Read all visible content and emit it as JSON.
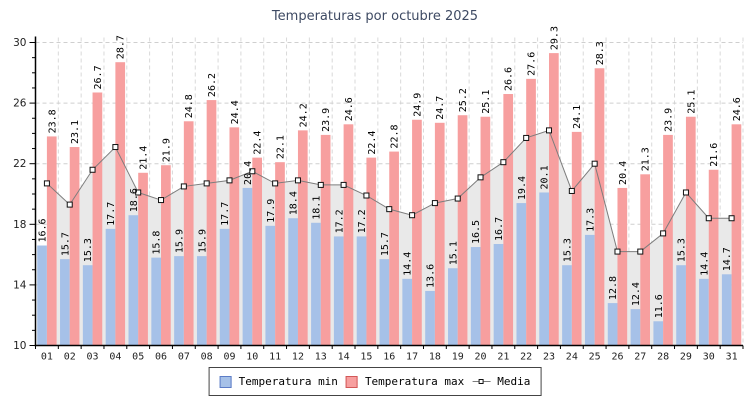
{
  "title": "Temperaturas por octubre 2025",
  "legend": {
    "min_label": "Temperatura min",
    "max_label": "Temperatura max",
    "media_label": "Media"
  },
  "colors": {
    "min_bar": "#a6c1e8",
    "max_bar": "#f79f9f",
    "media_line": "#7d7d7d",
    "media_area": "#e9e9e9",
    "marker_fill": "#ffffff",
    "marker_border": "#111111",
    "grid": "#cfcfcf",
    "axis": "#000000",
    "title_color": "#3e4a63",
    "tick_label_color": "#222222",
    "bar_label_color": "#000000"
  },
  "chart_data": {
    "type": "bar",
    "title": "Temperaturas por octubre 2025",
    "categories": [
      "01",
      "02",
      "03",
      "04",
      "05",
      "06",
      "07",
      "08",
      "09",
      "10",
      "11",
      "12",
      "13",
      "14",
      "15",
      "16",
      "17",
      "18",
      "19",
      "20",
      "21",
      "22",
      "23",
      "24",
      "25",
      "26",
      "27",
      "28",
      "29",
      "30",
      "31"
    ],
    "series": [
      {
        "name": "Temperatura min",
        "type": "bar",
        "values": [
          16.6,
          15.7,
          15.3,
          17.7,
          18.6,
          15.8,
          15.9,
          15.9,
          17.7,
          20.4,
          17.9,
          18.4,
          18.1,
          17.2,
          17.2,
          15.7,
          14.4,
          13.6,
          15.1,
          16.5,
          16.7,
          19.4,
          20.1,
          15.3,
          17.3,
          12.8,
          12.4,
          11.6,
          15.3,
          14.4,
          14.7
        ]
      },
      {
        "name": "Temperatura max",
        "type": "bar",
        "values": [
          23.8,
          23.1,
          26.7,
          28.7,
          21.4,
          21.9,
          24.8,
          26.2,
          24.4,
          22.4,
          22.1,
          24.2,
          23.9,
          24.6,
          22.4,
          22.8,
          24.9,
          24.7,
          25.2,
          25.1,
          26.6,
          27.6,
          29.3,
          24.1,
          28.3,
          20.4,
          21.3,
          23.9,
          25.1,
          21.6,
          24.6
        ]
      },
      {
        "name": "Media",
        "type": "line-area",
        "values_estimated": true,
        "values": [
          20.7,
          19.3,
          21.6,
          23.1,
          20.1,
          19.6,
          20.5,
          20.7,
          20.9,
          21.5,
          20.7,
          20.9,
          20.6,
          20.6,
          19.9,
          19.0,
          18.6,
          19.4,
          19.7,
          21.1,
          22.1,
          23.7,
          24.2,
          20.2,
          22.0,
          16.2,
          16.2,
          17.4,
          20.1,
          18.4,
          18.4
        ]
      }
    ],
    "xlabel": "",
    "ylabel": "",
    "ylim": [
      10,
      30
    ],
    "yticks": [
      10,
      14,
      18,
      22,
      26,
      30
    ],
    "y_minor_step": 1,
    "grid": true,
    "bar_value_labels": true,
    "legend_position": "bottom"
  }
}
